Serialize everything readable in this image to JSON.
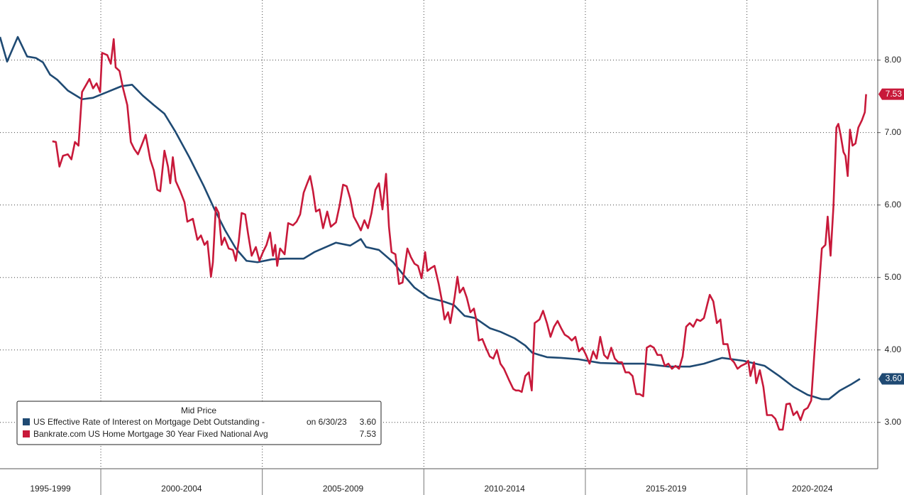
{
  "chart_data": {
    "type": "line",
    "legend_title": "Mid Price",
    "xlim": [
      1996.88,
      2024.05
    ],
    "ylim": [
      2.36,
      8.83
    ],
    "xticks": [
      {
        "value": 1995,
        "label": "1995-1999"
      },
      {
        "value": 2000,
        "label": "2000-2004"
      },
      {
        "value": 2005,
        "label": "2005-2009"
      },
      {
        "value": 2010,
        "label": "2010-2014"
      },
      {
        "value": 2015,
        "label": "2015-2019"
      },
      {
        "value": 2020,
        "label": "2020-2024"
      }
    ],
    "yticks": [
      {
        "value": 3,
        "label": "3.00"
      },
      {
        "value": 4,
        "label": "4.00"
      },
      {
        "value": 5,
        "label": "5.00"
      },
      {
        "value": 6,
        "label": "6.00"
      },
      {
        "value": 7,
        "label": "7.00"
      },
      {
        "value": 8,
        "label": "8.00"
      }
    ],
    "grid": true,
    "legend_position": "bottom-left",
    "series": [
      {
        "name": "US Effective Rate of Interest on Mortgage Debt Outstanding -",
        "legend_note": "on 6/30/23",
        "last_label": "3.60",
        "color": "#1f4a73",
        "x": [
          1996.88,
          1997.1,
          1997.43,
          1997.72,
          1997.99,
          1998.21,
          1998.43,
          1998.65,
          1998.98,
          1999.42,
          1999.76,
          2000.2,
          2000.64,
          2000.97,
          2001.3,
          2001.64,
          2001.97,
          2002.3,
          2002.74,
          2003.19,
          2003.52,
          2003.85,
          2004.18,
          2004.51,
          2004.85,
          2005.29,
          2005.73,
          2006.28,
          2006.61,
          2007.28,
          2007.72,
          2008.05,
          2008.21,
          2008.61,
          2009.05,
          2009.38,
          2009.71,
          2010.15,
          2010.6,
          2010.93,
          2011.26,
          2011.59,
          2012.04,
          2012.37,
          2012.81,
          2013.14,
          2013.36,
          2013.81,
          2014.25,
          2014.8,
          2015.46,
          2016.13,
          2016.79,
          2017.57,
          2018.23,
          2018.67,
          2019.23,
          2019.89,
          2020.55,
          2021.0,
          2021.44,
          2021.88,
          2022.32,
          2022.54,
          2022.88,
          2023.21,
          2023.5
        ],
        "values": [
          8.32,
          7.98,
          8.32,
          8.05,
          8.03,
          7.97,
          7.8,
          7.73,
          7.58,
          7.46,
          7.48,
          7.56,
          7.64,
          7.66,
          7.51,
          7.38,
          7.26,
          7.02,
          6.66,
          6.26,
          5.94,
          5.65,
          5.4,
          5.23,
          5.21,
          5.25,
          5.26,
          5.26,
          5.35,
          5.48,
          5.44,
          5.53,
          5.42,
          5.38,
          5.21,
          5.03,
          4.86,
          4.72,
          4.67,
          4.62,
          4.47,
          4.44,
          4.3,
          4.25,
          4.16,
          4.06,
          3.96,
          3.9,
          3.89,
          3.87,
          3.82,
          3.81,
          3.81,
          3.77,
          3.77,
          3.81,
          3.89,
          3.85,
          3.78,
          3.64,
          3.49,
          3.38,
          3.32,
          3.32,
          3.44,
          3.52,
          3.6
        ]
      },
      {
        "name": "Bankrate.com US Home Mortgage 30 Year Fixed National Avg",
        "last_label": "7.53",
        "color": "#c8193a",
        "x": [
          1998.5,
          1998.61,
          1998.72,
          1998.83,
          1998.98,
          1999.09,
          1999.2,
          1999.31,
          1999.42,
          1999.65,
          1999.76,
          1999.87,
          1999.98,
          2000.04,
          2000.2,
          2000.31,
          2000.4,
          2000.46,
          2000.58,
          2000.69,
          2000.82,
          2000.93,
          2001.04,
          2001.15,
          2001.26,
          2001.39,
          2001.53,
          2001.64,
          2001.75,
          2001.84,
          2001.97,
          2002.08,
          2002.15,
          2002.23,
          2002.32,
          2002.46,
          2002.59,
          2002.68,
          2002.85,
          2002.99,
          2003.1,
          2003.21,
          2003.3,
          2003.41,
          2003.47,
          2003.56,
          2003.65,
          2003.74,
          2003.83,
          2003.96,
          2004.09,
          2004.18,
          2004.27,
          2004.36,
          2004.47,
          2004.56,
          2004.67,
          2004.8,
          2004.91,
          2005.02,
          2005.13,
          2005.24,
          2005.33,
          2005.4,
          2005.46,
          2005.55,
          2005.69,
          2005.8,
          2005.95,
          2006.06,
          2006.17,
          2006.28,
          2006.39,
          2006.48,
          2006.57,
          2006.66,
          2006.77,
          2006.88,
          2007.01,
          2007.12,
          2007.28,
          2007.39,
          2007.5,
          2007.61,
          2007.72,
          2007.83,
          2007.94,
          2008.05,
          2008.16,
          2008.27,
          2008.38,
          2008.5,
          2008.61,
          2008.72,
          2008.83,
          2008.92,
          2009.0,
          2009.12,
          2009.23,
          2009.34,
          2009.49,
          2009.6,
          2009.71,
          2009.82,
          2009.93,
          2010.04,
          2010.11,
          2010.22,
          2010.33,
          2010.46,
          2010.55,
          2010.64,
          2010.75,
          2010.82,
          2010.95,
          2011.04,
          2011.11,
          2011.22,
          2011.33,
          2011.44,
          2011.55,
          2011.62,
          2011.7,
          2011.81,
          2011.92,
          2012.04,
          2012.15,
          2012.26,
          2012.37,
          2012.48,
          2012.63,
          2012.77,
          2012.85,
          2012.94,
          2013.03,
          2013.14,
          2013.25,
          2013.34,
          2013.43,
          2013.58,
          2013.69,
          2013.81,
          2013.92,
          2014.03,
          2014.14,
          2014.25,
          2014.36,
          2014.47,
          2014.58,
          2014.69,
          2014.8,
          2014.91,
          2015.02,
          2015.13,
          2015.24,
          2015.35,
          2015.46,
          2015.58,
          2015.69,
          2015.8,
          2015.91,
          2016.02,
          2016.13,
          2016.24,
          2016.35,
          2016.46,
          2016.57,
          2016.68,
          2016.79,
          2016.9,
          2017.01,
          2017.12,
          2017.23,
          2017.35,
          2017.46,
          2017.57,
          2017.68,
          2017.79,
          2017.9,
          2018.01,
          2018.12,
          2018.23,
          2018.34,
          2018.45,
          2018.56,
          2018.67,
          2018.78,
          2018.85,
          2018.96,
          2019.07,
          2019.18,
          2019.27,
          2019.4,
          2019.49,
          2019.6,
          2019.71,
          2019.82,
          2019.96,
          2020.04,
          2020.11,
          2020.22,
          2020.29,
          2020.4,
          2020.51,
          2020.62,
          2020.77,
          2020.88,
          2021.0,
          2021.11,
          2021.22,
          2021.33,
          2021.44,
          2021.55,
          2021.66,
          2021.77,
          2021.88,
          2021.99,
          2022.1,
          2022.21,
          2022.32,
          2022.43,
          2022.5,
          2022.59,
          2022.68,
          2022.77,
          2022.83,
          2022.9,
          2022.99,
          2023.05,
          2023.12,
          2023.19,
          2023.27,
          2023.36,
          2023.45,
          2023.56,
          2023.65,
          2023.69
        ],
        "values": [
          6.88,
          6.87,
          6.53,
          6.68,
          6.7,
          6.63,
          6.87,
          6.82,
          7.56,
          7.74,
          7.61,
          7.68,
          7.56,
          8.1,
          8.07,
          7.95,
          8.29,
          7.9,
          7.85,
          7.61,
          7.38,
          6.87,
          6.77,
          6.7,
          6.82,
          6.97,
          6.63,
          6.48,
          6.21,
          6.19,
          6.75,
          6.53,
          6.3,
          6.66,
          6.33,
          6.19,
          6.04,
          5.77,
          5.81,
          5.52,
          5.58,
          5.45,
          5.5,
          5.01,
          5.21,
          5.97,
          5.89,
          5.45,
          5.55,
          5.4,
          5.38,
          5.23,
          5.5,
          5.89,
          5.87,
          5.6,
          5.3,
          5.42,
          5.23,
          5.35,
          5.45,
          5.62,
          5.3,
          5.45,
          5.16,
          5.4,
          5.32,
          5.75,
          5.72,
          5.77,
          5.87,
          6.17,
          6.3,
          6.4,
          6.19,
          5.91,
          5.94,
          5.68,
          5.91,
          5.7,
          5.76,
          5.99,
          6.28,
          6.26,
          6.09,
          5.84,
          5.75,
          5.65,
          5.79,
          5.68,
          5.89,
          6.21,
          6.3,
          5.94,
          6.43,
          5.7,
          5.35,
          5.32,
          4.91,
          4.93,
          5.4,
          5.28,
          5.19,
          5.16,
          4.99,
          5.35,
          5.09,
          5.13,
          5.16,
          4.91,
          4.7,
          4.42,
          4.52,
          4.37,
          4.72,
          5.01,
          4.79,
          4.86,
          4.72,
          4.52,
          4.57,
          4.42,
          4.13,
          4.15,
          4.03,
          3.91,
          3.88,
          4.0,
          3.81,
          3.74,
          3.59,
          3.46,
          3.44,
          3.44,
          3.42,
          3.64,
          3.69,
          3.44,
          4.37,
          4.42,
          4.54,
          4.37,
          4.18,
          4.32,
          4.4,
          4.3,
          4.21,
          4.18,
          4.13,
          4.18,
          3.98,
          4.03,
          3.93,
          3.81,
          3.98,
          3.88,
          4.18,
          3.93,
          3.88,
          4.03,
          3.88,
          3.83,
          3.83,
          3.69,
          3.69,
          3.64,
          3.39,
          3.39,
          3.36,
          4.03,
          4.06,
          4.03,
          3.93,
          3.93,
          3.78,
          3.81,
          3.74,
          3.78,
          3.74,
          3.91,
          4.32,
          4.37,
          4.32,
          4.42,
          4.4,
          4.44,
          4.64,
          4.76,
          4.67,
          4.37,
          4.42,
          4.08,
          4.08,
          3.88,
          3.83,
          3.74,
          3.78,
          3.81,
          3.85,
          3.64,
          3.83,
          3.54,
          3.72,
          3.49,
          3.1,
          3.1,
          3.05,
          2.9,
          2.9,
          3.25,
          3.26,
          3.1,
          3.15,
          3.03,
          3.17,
          3.2,
          3.3,
          4.03,
          4.72,
          5.4,
          5.45,
          5.84,
          5.3,
          5.99,
          7.07,
          7.12,
          6.97,
          6.73,
          6.68,
          6.4,
          7.04,
          6.82,
          6.85,
          7.07,
          7.17,
          7.28,
          7.53
        ]
      }
    ]
  }
}
